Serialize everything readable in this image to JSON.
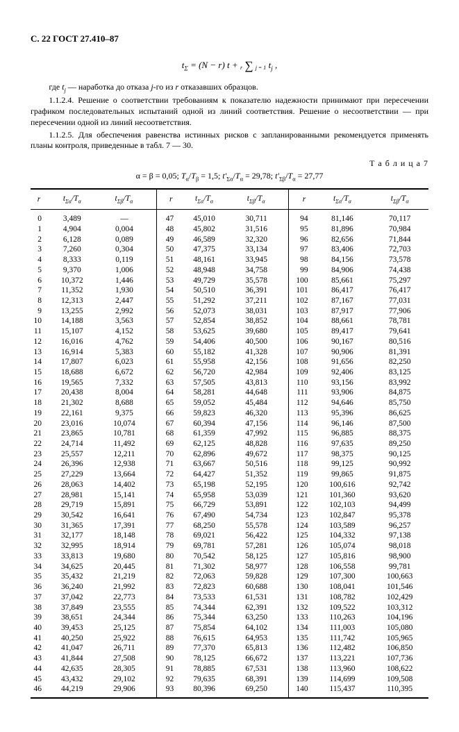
{
  "header": "С. 22 ГОСТ 27.410–87",
  "formula": "t_{Σ} = (N − r) t + Σ t_{j} ,",
  "para1": "где t_{j} — наработка до отказа j-го из r отказавших образцов.",
  "para2": "1.1.2.4. Решение о соответствии требованиям к показателю надежности принимают при пересечении графиком последовательных испытаний одной из линий соответствия. Решение о несоответствии — при пересечении одной из линий несоответствия.",
  "para3": "1.1.2.5. Для обеспечения равенства истинных рисков с запланированными рекомендуется применять планы контроля, приведенные в табл. 7 — 30.",
  "table_label": "Т а б л и ц а  7",
  "table_header": "α = β = 0,05; T_{α}/T_{β} = 1,5; t′_{Σα}/T_{α} = 29,78; t′_{Σβ}/T_{α} = 27,77",
  "cols": [
    "r",
    "t_{Σα}/T_{α}",
    "t_{Σβ}/T_{α}",
    "r",
    "t_{Σα}/T_{α}",
    "t_{Σβ}/T_{α}",
    "r",
    "t_{Σα}/T_{α}",
    "t_{Σβ}/T_{α}"
  ],
  "rows": [
    [
      "0",
      "3,489",
      "—",
      "47",
      "45,010",
      "30,711",
      "94",
      "81,146",
      "70,117"
    ],
    [
      "1",
      "4,904",
      "0,004",
      "48",
      "45,802",
      "31,516",
      "95",
      "81,896",
      "70,984"
    ],
    [
      "2",
      "6,128",
      "0,089",
      "49",
      "46,589",
      "32,320",
      "96",
      "82,656",
      "71,844"
    ],
    [
      "3",
      "7,260",
      "0,304",
      "50",
      "47,375",
      "33,134",
      "97",
      "83,406",
      "72,703"
    ],
    [
      "4",
      "8,333",
      "0,119",
      "51",
      "48,161",
      "33,945",
      "98",
      "84,156",
      "73,578"
    ],
    [
      "5",
      "9,370",
      "1,006",
      "52",
      "48,948",
      "34,758",
      "99",
      "84,906",
      "74,438"
    ],
    [
      "6",
      "10,372",
      "1,446",
      "53",
      "49,729",
      "35,578",
      "100",
      "85,661",
      "75,297"
    ],
    [
      "7",
      "11,352",
      "1,930",
      "54",
      "50,510",
      "36,391",
      "101",
      "86,417",
      "76,417"
    ],
    [
      "8",
      "12,313",
      "2,447",
      "55",
      "51,292",
      "37,211",
      "102",
      "87,167",
      "77,031"
    ],
    [
      "9",
      "13,255",
      "2,992",
      "56",
      "52,073",
      "38,031",
      "103",
      "87,917",
      "77,906"
    ],
    [
      "10",
      "14,188",
      "3,563",
      "57",
      "52,854",
      "38,852",
      "104",
      "88,661",
      "78,781"
    ],
    [
      "11",
      "15,107",
      "4,152",
      "58",
      "53,625",
      "39,680",
      "105",
      "89,417",
      "79,641"
    ],
    [
      "12",
      "16,016",
      "4,762",
      "59",
      "54,406",
      "40,500",
      "106",
      "90,167",
      "80,516"
    ],
    [
      "13",
      "16,914",
      "5,383",
      "60",
      "55,182",
      "41,328",
      "107",
      "90,906",
      "81,391"
    ],
    [
      "14",
      "17,807",
      "6,023",
      "61",
      "55,958",
      "42,156",
      "108",
      "91,656",
      "82,250"
    ],
    [
      "15",
      "18,688",
      "6,672",
      "62",
      "56,720",
      "42,984",
      "109",
      "92,406",
      "83,125"
    ],
    [
      "16",
      "19,565",
      "7,332",
      "63",
      "57,505",
      "43,813",
      "110",
      "93,156",
      "83,992"
    ],
    [
      "17",
      "20,438",
      "8,004",
      "64",
      "58,281",
      "44,648",
      "111",
      "93,906",
      "84,875"
    ],
    [
      "18",
      "21,302",
      "8,688",
      "65",
      "59,052",
      "45,484",
      "112",
      "94,646",
      "85,750"
    ],
    [
      "19",
      "22,161",
      "9,375",
      "66",
      "59,823",
      "46,320",
      "113",
      "95,396",
      "86,625"
    ],
    [
      "20",
      "23,016",
      "10,074",
      "67",
      "60,394",
      "47,156",
      "114",
      "96,146",
      "87,500"
    ],
    [
      "21",
      "23,865",
      "10,781",
      "68",
      "61,359",
      "47,992",
      "115",
      "96,885",
      "88,375"
    ],
    [
      "22",
      "24,714",
      "11,492",
      "69",
      "62,125",
      "48,828",
      "116",
      "97,635",
      "89,250"
    ],
    [
      "23",
      "25,557",
      "12,211",
      "70",
      "62,896",
      "49,672",
      "117",
      "98,375",
      "90,125"
    ],
    [
      "24",
      "26,396",
      "12,938",
      "71",
      "63,667",
      "50,516",
      "118",
      "99,125",
      "90,992"
    ],
    [
      "25",
      "27,229",
      "13,664",
      "72",
      "64,427",
      "51,352",
      "119",
      "99,865",
      "91,875"
    ],
    [
      "26",
      "28,063",
      "14,402",
      "73",
      "65,198",
      "52,195",
      "120",
      "100,616",
      "92,742"
    ],
    [
      "27",
      "28,981",
      "15,141",
      "74",
      "65,958",
      "53,039",
      "121",
      "101,360",
      "93,620"
    ],
    [
      "28",
      "29,719",
      "15,891",
      "75",
      "66,729",
      "53,891",
      "122",
      "102,103",
      "94,499"
    ],
    [
      "29",
      "30,542",
      "16,641",
      "76",
      "67,490",
      "54,734",
      "123",
      "102,847",
      "95,378"
    ],
    [
      "30",
      "31,365",
      "17,391",
      "77",
      "68,250",
      "55,578",
      "124",
      "103,589",
      "96,257"
    ],
    [
      "31",
      "32,177",
      "18,148",
      "78",
      "69,021",
      "56,422",
      "125",
      "104,332",
      "97,138"
    ],
    [
      "32",
      "32,995",
      "18,914",
      "79",
      "69,781",
      "57,281",
      "126",
      "105,074",
      "98,018"
    ],
    [
      "33",
      "33,813",
      "19,680",
      "80",
      "70,542",
      "58,125",
      "127",
      "105,816",
      "98,900"
    ],
    [
      "34",
      "34,625",
      "20,445",
      "81",
      "71,302",
      "58,977",
      "128",
      "106,558",
      "99,781"
    ],
    [
      "35",
      "35,432",
      "21,219",
      "82",
      "72,063",
      "59,828",
      "129",
      "107,300",
      "100,663"
    ],
    [
      "36",
      "36,240",
      "21,992",
      "83",
      "72,823",
      "60,688",
      "130",
      "108,041",
      "101,546"
    ],
    [
      "37",
      "37,042",
      "22,773",
      "84",
      "73,533",
      "61,531",
      "131",
      "108,782",
      "102,429"
    ],
    [
      "38",
      "37,849",
      "23,555",
      "85",
      "74,344",
      "62,391",
      "132",
      "109,522",
      "103,312"
    ],
    [
      "39",
      "38,651",
      "24,344",
      "86",
      "75,344",
      "63,250",
      "133",
      "110,263",
      "104,196"
    ],
    [
      "40",
      "39,453",
      "25,125",
      "87",
      "75,854",
      "64,102",
      "134",
      "111,003",
      "105,080"
    ],
    [
      "41",
      "40,250",
      "25,922",
      "88",
      "76,615",
      "64,953",
      "135",
      "111,742",
      "105,965"
    ],
    [
      "42",
      "41,047",
      "26,711",
      "89",
      "77,370",
      "65,813",
      "136",
      "112,482",
      "106,850"
    ],
    [
      "43",
      "41,844",
      "27,508",
      "90",
      "78,125",
      "66,672",
      "137",
      "113,221",
      "107,736"
    ],
    [
      "44",
      "42,635",
      "28,305",
      "91",
      "78,885",
      "67,531",
      "138",
      "113,960",
      "108,622"
    ],
    [
      "45",
      "43,432",
      "29,102",
      "92",
      "79,635",
      "68,391",
      "139",
      "114,699",
      "109,508"
    ],
    [
      "46",
      "44,219",
      "29,906",
      "93",
      "80,396",
      "69,250",
      "140",
      "115,437",
      "110,395"
    ]
  ]
}
